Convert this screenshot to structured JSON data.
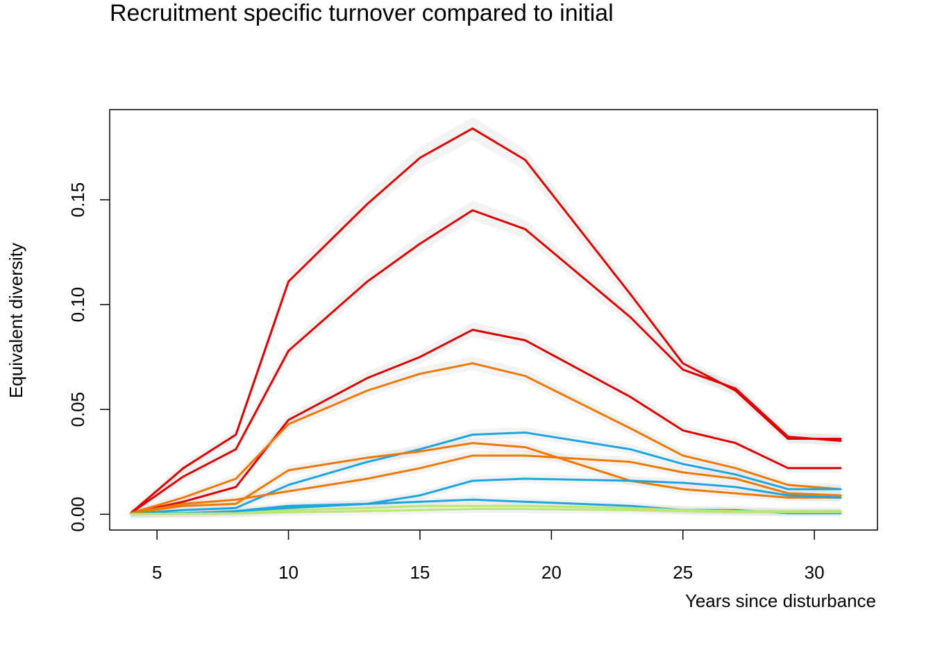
{
  "chart_data": {
    "type": "line",
    "title": "Recruitment specific turnover compared to initial",
    "xlabel": "Years since disturbance",
    "ylabel": "Equivalent diversity",
    "xlim": [
      3.2,
      32.4
    ],
    "ylim": [
      -0.0075,
      0.193
    ],
    "xticks": [
      5,
      10,
      15,
      20,
      25,
      30
    ],
    "yticks": [
      0.0,
      0.05,
      0.1,
      0.15
    ],
    "ytick_labels": [
      "0.00",
      "0.05",
      "0.10",
      "0.15"
    ],
    "x": [
      4,
      6,
      8,
      10,
      13,
      15,
      17,
      19,
      23,
      25,
      27,
      29,
      31
    ],
    "grid": false,
    "legend": "none",
    "band_color": "#dcdcdc",
    "series": [
      {
        "color": "#e00000",
        "values": [
          0.0005,
          0.022,
          0.038,
          0.111,
          0.148,
          0.17,
          0.184,
          0.169,
          0.105,
          0.072,
          0.059,
          0.036,
          0.036
        ]
      },
      {
        "color": "#e00000",
        "values": [
          0.0005,
          0.018,
          0.031,
          0.078,
          0.111,
          0.129,
          0.145,
          0.136,
          0.094,
          0.069,
          0.06,
          0.037,
          0.035
        ]
      },
      {
        "color": "#dd0000",
        "values": [
          0.0005,
          0.006,
          0.013,
          0.045,
          0.065,
          0.075,
          0.088,
          0.083,
          0.056,
          0.04,
          0.034,
          0.022,
          0.022
        ]
      },
      {
        "color": "#f07800",
        "values": [
          0.0005,
          0.008,
          0.017,
          0.043,
          0.059,
          0.067,
          0.072,
          0.066,
          0.041,
          0.028,
          0.022,
          0.014,
          0.012
        ]
      },
      {
        "color": "#1aa6e0",
        "values": [
          0.0003,
          0.002,
          0.003,
          0.014,
          0.025,
          0.031,
          0.038,
          0.039,
          0.031,
          0.024,
          0.019,
          0.012,
          0.012
        ]
      },
      {
        "color": "#f07800",
        "values": [
          0.0005,
          0.004,
          0.005,
          0.021,
          0.027,
          0.03,
          0.034,
          0.032,
          0.016,
          0.012,
          0.01,
          0.008,
          0.008
        ]
      },
      {
        "color": "#f07800",
        "values": [
          0.0005,
          0.005,
          0.007,
          0.011,
          0.017,
          0.022,
          0.028,
          0.028,
          0.025,
          0.02,
          0.017,
          0.01,
          0.009
        ]
      },
      {
        "color": "#1aa6e0",
        "values": [
          0.0002,
          0.0005,
          0.001,
          0.003,
          0.005,
          0.009,
          0.016,
          0.017,
          0.016,
          0.015,
          0.013,
          0.009,
          0.008
        ]
      },
      {
        "color": "#1aa6e0",
        "values": [
          0.0002,
          0.0005,
          0.0015,
          0.004,
          0.005,
          0.006,
          0.007,
          0.006,
          0.004,
          0.002,
          0.002,
          0.0005,
          0.0005
        ]
      },
      {
        "color": "#b8e870",
        "values": [
          0.0001,
          0.0003,
          0.0005,
          0.002,
          0.003,
          0.004,
          0.004,
          0.004,
          0.003,
          0.002,
          0.0015,
          0.0015,
          0.0015
        ]
      },
      {
        "color": "#b8e870",
        "values": [
          0.0001,
          0.0002,
          0.0004,
          0.001,
          0.0015,
          0.002,
          0.0025,
          0.0025,
          0.002,
          0.0015,
          0.001,
          0.001,
          0.001
        ]
      }
    ]
  }
}
